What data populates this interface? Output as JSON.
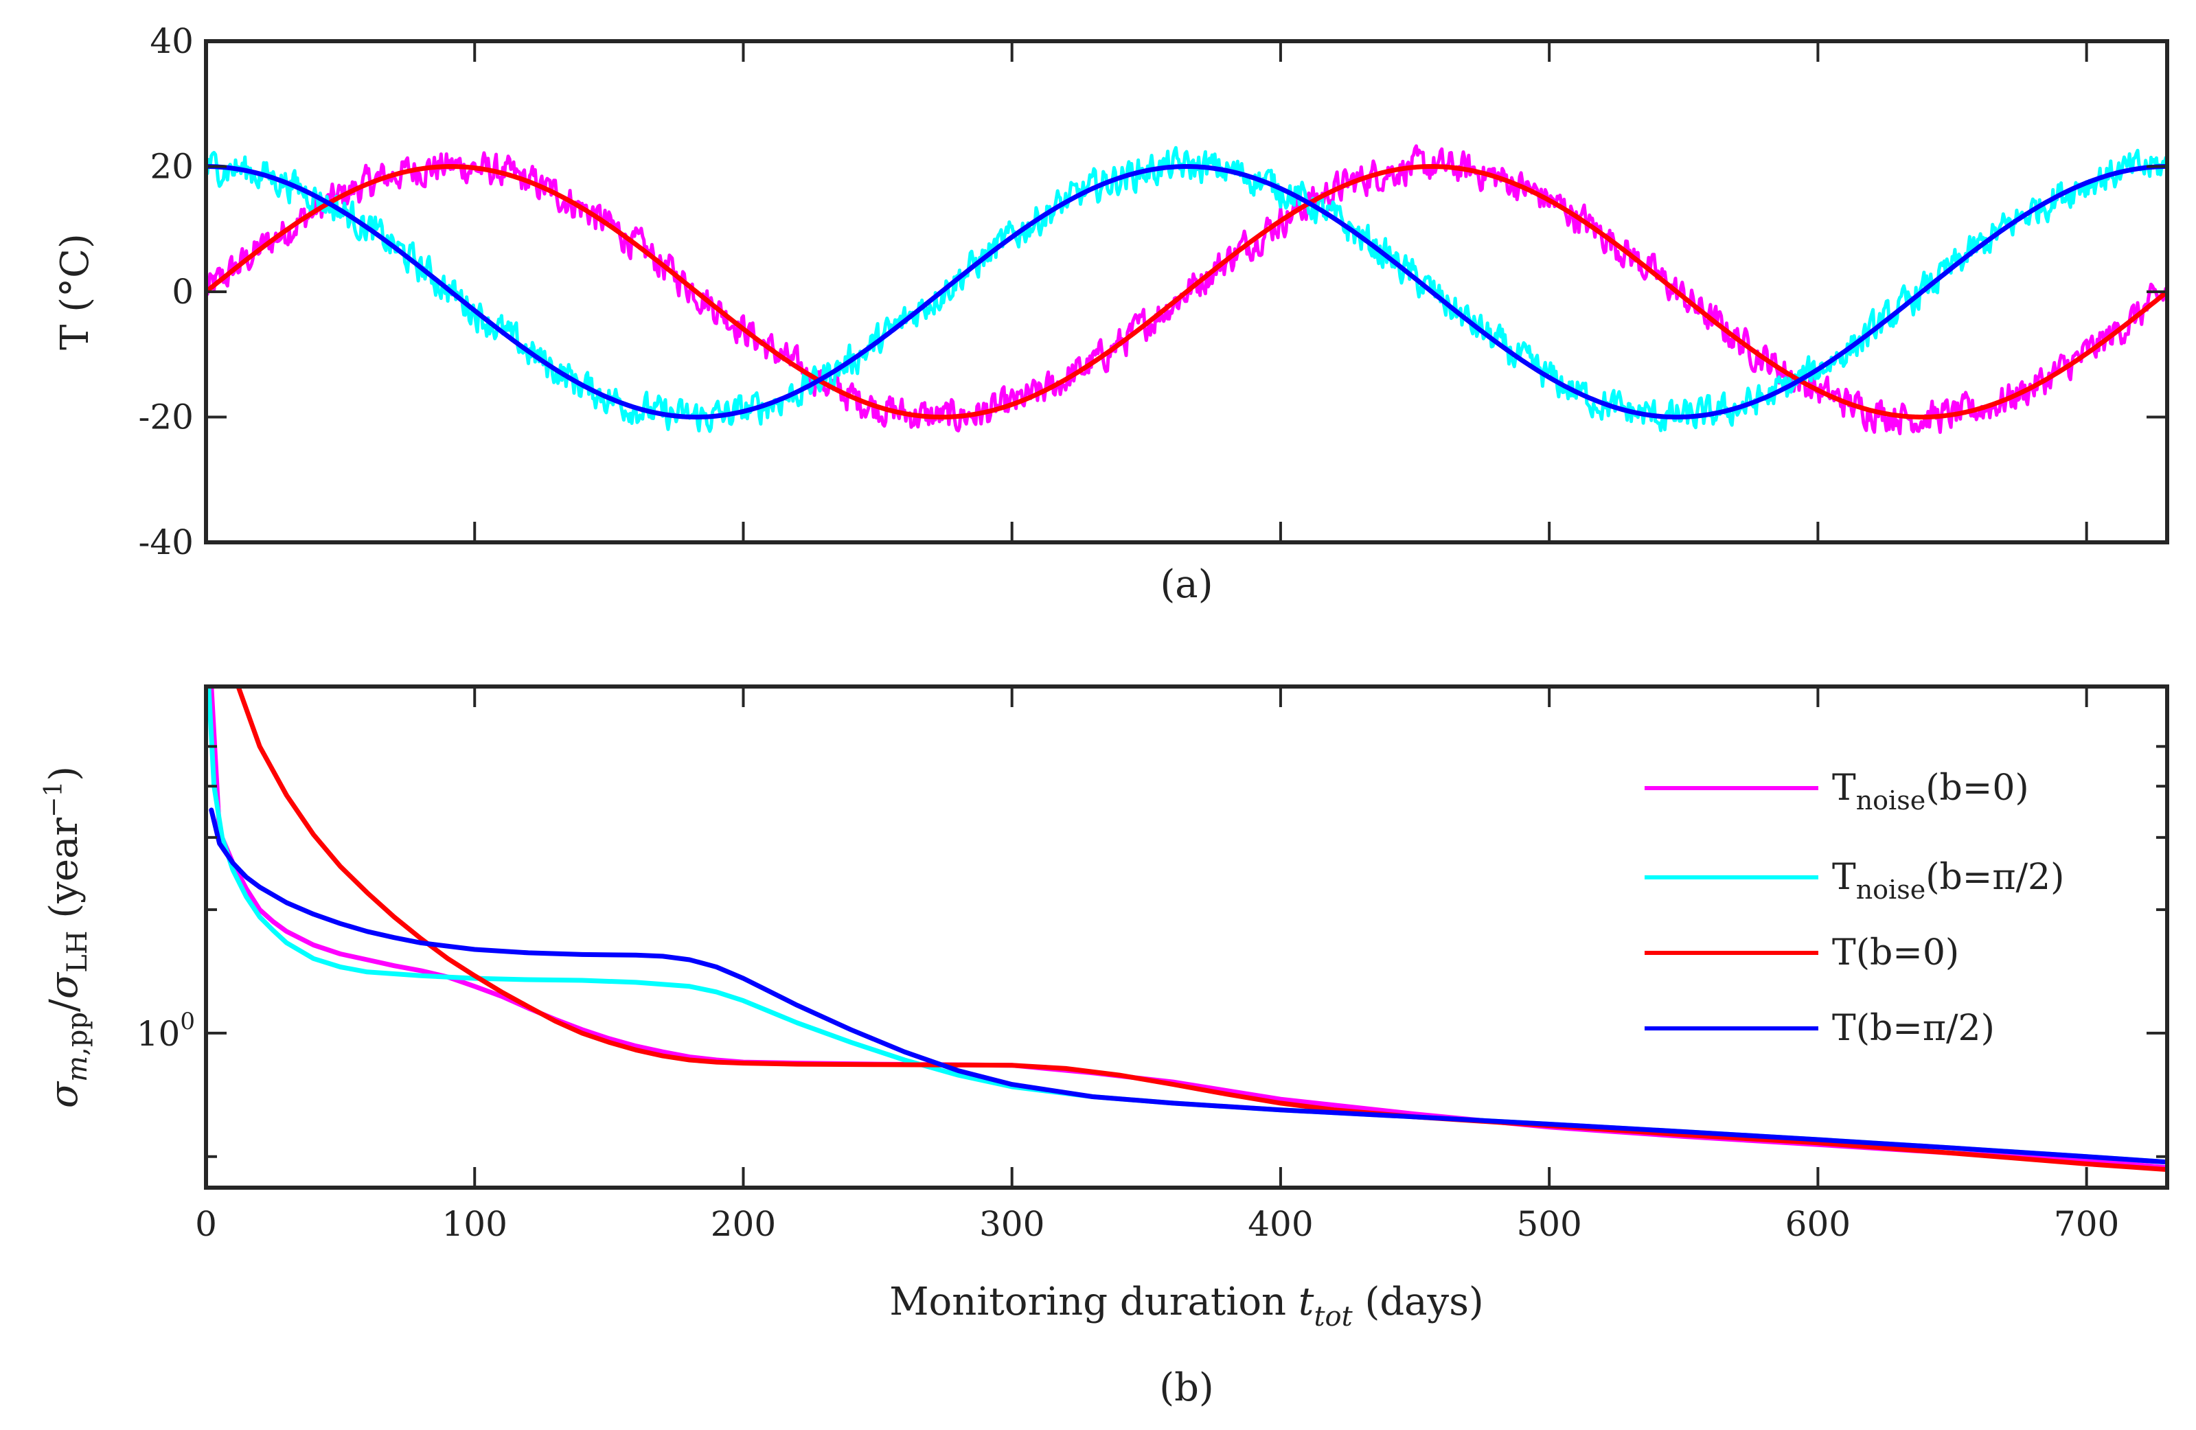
{
  "chart_data": [
    {
      "id": "a",
      "type": "line",
      "panel_label": "(a)",
      "title": "",
      "xlabel": "",
      "ylabel": "T (°C)",
      "xlim": [
        0,
        730
      ],
      "ylim": [
        -40,
        40
      ],
      "yticks": [
        -40,
        -20,
        0,
        20,
        40
      ],
      "ytick_labels": [
        "-40",
        "-20",
        "0",
        "20",
        "40"
      ],
      "xticks": [
        0,
        100,
        200,
        300,
        400,
        500,
        600,
        700
      ],
      "grid": false,
      "model": {
        "amplitude": 20,
        "period_days": 365,
        "noise_amplitude": 4
      },
      "series": [
        {
          "name": "T_noise(b=0)",
          "phase": 0,
          "noisy": true,
          "color": "#ff00ff"
        },
        {
          "name": "T_noise(b=π/2)",
          "phase": 1.5708,
          "noisy": true,
          "color": "#00ffff"
        },
        {
          "name": "T(b=0)",
          "phase": 0,
          "noisy": false,
          "color": "#ff0000"
        },
        {
          "name": "T(b=π/2)",
          "phase": 1.5708,
          "noisy": false,
          "color": "#0000ff"
        }
      ]
    },
    {
      "id": "b",
      "type": "line",
      "panel_label": "(b)",
      "title": "",
      "xlabel_main": "Monitoring duration ",
      "xlabel_var": "t",
      "xlabel_sub": "tot",
      "xlabel_unit": " (days)",
      "ylabel_parts": {
        "sigma1": "σ",
        "sub1_italic": "m",
        "sub1_rest": ",pp",
        "slash": "/",
        "sigma2": "σ",
        "sub2": "LH",
        "unit_open": " (year",
        "unit_exp": "−1",
        "unit_close": ")"
      },
      "xlim": [
        0,
        730
      ],
      "ylim": [
        0.42,
        7
      ],
      "yscale": "log",
      "xticks": [
        0,
        100,
        200,
        300,
        400,
        500,
        600,
        700
      ],
      "xtick_labels": [
        "0",
        "100",
        "200",
        "300",
        "400",
        "500",
        "600",
        "700"
      ],
      "ytick_label": {
        "base": "10",
        "exp": "0",
        "value": 1
      },
      "minor_yticks": [
        0.5,
        2,
        3,
        4,
        5
      ],
      "grid": false,
      "legend_position": "top-right",
      "series": [
        {
          "name": "T_noise(b=0)",
          "legend_main": "T",
          "legend_sub": "noise",
          "legend_rest": "(b=0)",
          "color": "#ff00ff",
          "x": [
            2,
            5,
            10,
            15,
            20,
            25,
            30,
            40,
            50,
            60,
            70,
            80,
            90,
            100,
            110,
            120,
            130,
            140,
            150,
            160,
            170,
            180,
            190,
            200,
            220,
            250,
            270,
            300,
            330,
            360,
            400,
            450,
            500,
            550,
            600,
            650,
            700,
            730
          ],
          "y": [
            7,
            3.1,
            2.6,
            2.25,
            2.0,
            1.87,
            1.77,
            1.64,
            1.56,
            1.51,
            1.46,
            1.42,
            1.37,
            1.3,
            1.23,
            1.15,
            1.08,
            1.02,
            0.97,
            0.93,
            0.9,
            0.875,
            0.86,
            0.85,
            0.845,
            0.84,
            0.838,
            0.835,
            0.8,
            0.76,
            0.69,
            0.635,
            0.59,
            0.56,
            0.535,
            0.51,
            0.49,
            0.47
          ]
        },
        {
          "name": "T_noise(b=π/2)",
          "legend_main": "T",
          "legend_sub": "noise",
          "legend_rest": "(b=π/2)",
          "color": "#00ffff",
          "x": [
            1,
            3,
            6,
            10,
            15,
            20,
            25,
            30,
            40,
            50,
            60,
            80,
            100,
            120,
            140,
            160,
            180,
            190,
            200,
            220,
            240,
            260,
            280,
            300,
            330,
            360,
            400,
            450,
            500,
            550,
            600,
            650,
            700,
            730
          ],
          "y": [
            7,
            4.0,
            3.0,
            2.5,
            2.15,
            1.92,
            1.78,
            1.66,
            1.52,
            1.45,
            1.41,
            1.38,
            1.36,
            1.35,
            1.345,
            1.33,
            1.3,
            1.26,
            1.2,
            1.06,
            0.95,
            0.86,
            0.79,
            0.74,
            0.7,
            0.675,
            0.65,
            0.625,
            0.6,
            0.575,
            0.55,
            0.525,
            0.5,
            0.485
          ]
        },
        {
          "name": "T(b=0)",
          "legend_main": "T",
          "legend_sub": "",
          "legend_rest": "(b=0)",
          "color": "#ff0000",
          "x": [
            12,
            20,
            30,
            40,
            50,
            60,
            70,
            80,
            90,
            100,
            110,
            120,
            130,
            140,
            150,
            160,
            170,
            180,
            190,
            200,
            220,
            250,
            270,
            300,
            320,
            340,
            360,
            380,
            400,
            420,
            450,
            500,
            550,
            600,
            650,
            700,
            730
          ],
          "y": [
            7,
            5.0,
            3.8,
            3.05,
            2.55,
            2.2,
            1.92,
            1.7,
            1.52,
            1.38,
            1.26,
            1.16,
            1.07,
            1.0,
            0.95,
            0.91,
            0.88,
            0.86,
            0.85,
            0.845,
            0.84,
            0.838,
            0.837,
            0.835,
            0.82,
            0.79,
            0.75,
            0.71,
            0.675,
            0.65,
            0.625,
            0.595,
            0.565,
            0.54,
            0.51,
            0.48,
            0.465
          ]
        },
        {
          "name": "T(b=π/2)",
          "legend_main": "T",
          "legend_sub": "",
          "legend_rest": "(b=π/2)",
          "color": "#0000ff",
          "x": [
            2,
            5,
            10,
            15,
            20,
            30,
            40,
            50,
            60,
            70,
            80,
            100,
            120,
            140,
            160,
            170,
            180,
            190,
            200,
            220,
            240,
            260,
            280,
            300,
            330,
            360,
            400,
            450,
            500,
            550,
            600,
            650,
            700,
            730
          ],
          "y": [
            3.5,
            2.9,
            2.6,
            2.4,
            2.27,
            2.08,
            1.95,
            1.85,
            1.77,
            1.71,
            1.66,
            1.6,
            1.57,
            1.555,
            1.55,
            1.54,
            1.51,
            1.45,
            1.36,
            1.17,
            1.02,
            0.9,
            0.81,
            0.75,
            0.7,
            0.675,
            0.65,
            0.625,
            0.6,
            0.575,
            0.55,
            0.525,
            0.5,
            0.485
          ]
        }
      ]
    }
  ]
}
